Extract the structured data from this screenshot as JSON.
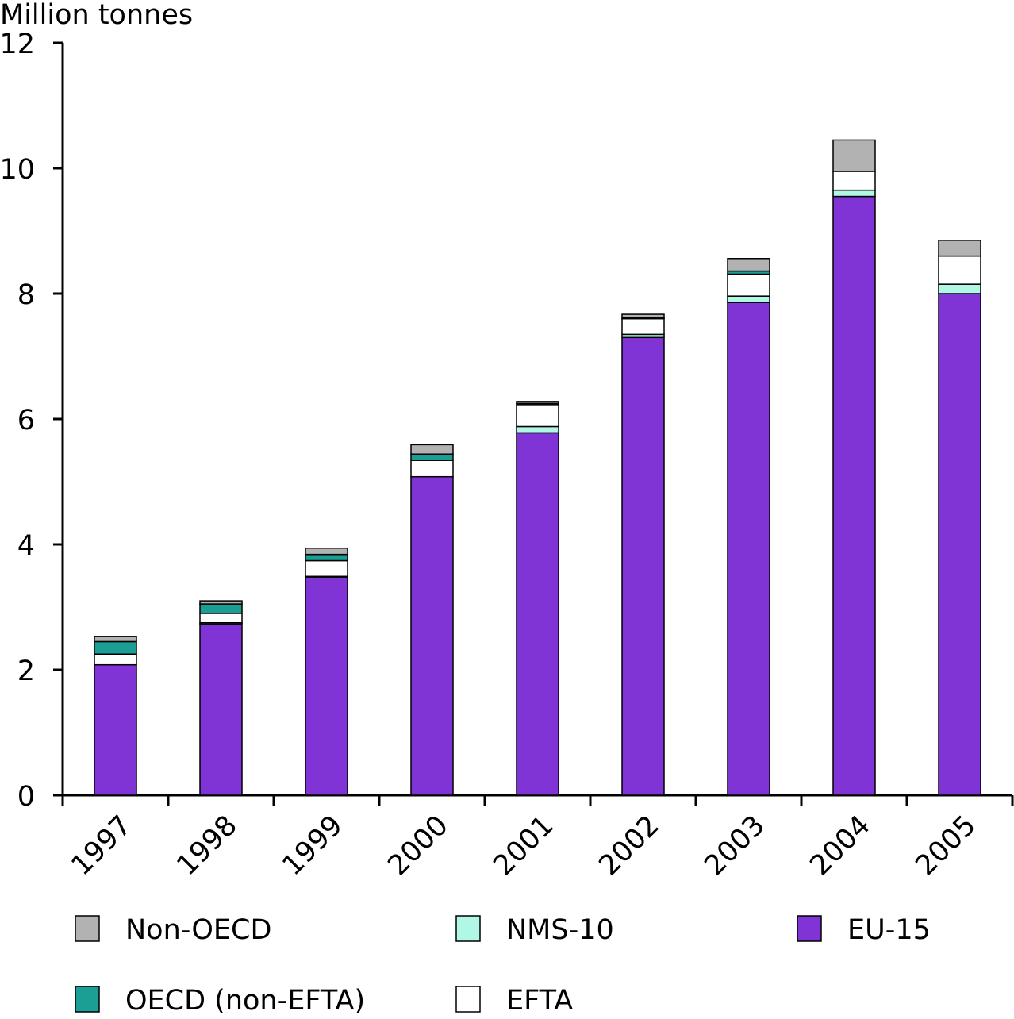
{
  "chart_data": {
    "type": "bar",
    "stacked": true,
    "ylabel": "Million tonnes",
    "ylim": [
      0,
      12
    ],
    "yticks": [
      0,
      2,
      4,
      6,
      8,
      10,
      12
    ],
    "categories": [
      "1997",
      "1998",
      "1999",
      "2000",
      "2001",
      "2002",
      "2003",
      "2004",
      "2005"
    ],
    "series": [
      {
        "name": "EU-15",
        "color": "#8134D6",
        "values": [
          2.08,
          2.73,
          3.48,
          5.08,
          5.78,
          7.3,
          7.86,
          9.55,
          8.0
        ]
      },
      {
        "name": "NMS-10",
        "color": "#B0F7E6",
        "values": [
          0.0,
          0.02,
          0.01,
          0.0,
          0.1,
          0.05,
          0.1,
          0.1,
          0.15
        ]
      },
      {
        "name": "EFTA",
        "color": "#FFFFFF",
        "values": [
          0.17,
          0.15,
          0.25,
          0.26,
          0.35,
          0.25,
          0.35,
          0.3,
          0.45
        ]
      },
      {
        "name": "OECD (non-EFTA)",
        "color": "#1B9E93",
        "values": [
          0.2,
          0.15,
          0.1,
          0.1,
          0.02,
          0.02,
          0.05,
          0.0,
          0.0
        ]
      },
      {
        "name": "Non-OECD",
        "color": "#B2B2B2",
        "values": [
          0.08,
          0.05,
          0.1,
          0.15,
          0.03,
          0.05,
          0.2,
          0.5,
          0.25
        ]
      }
    ],
    "grid": false,
    "legend": {
      "placement": "bottom",
      "order": [
        "Non-OECD",
        "NMS-10",
        "EU-15",
        "OECD (non-EFTA)",
        "EFTA"
      ]
    }
  }
}
